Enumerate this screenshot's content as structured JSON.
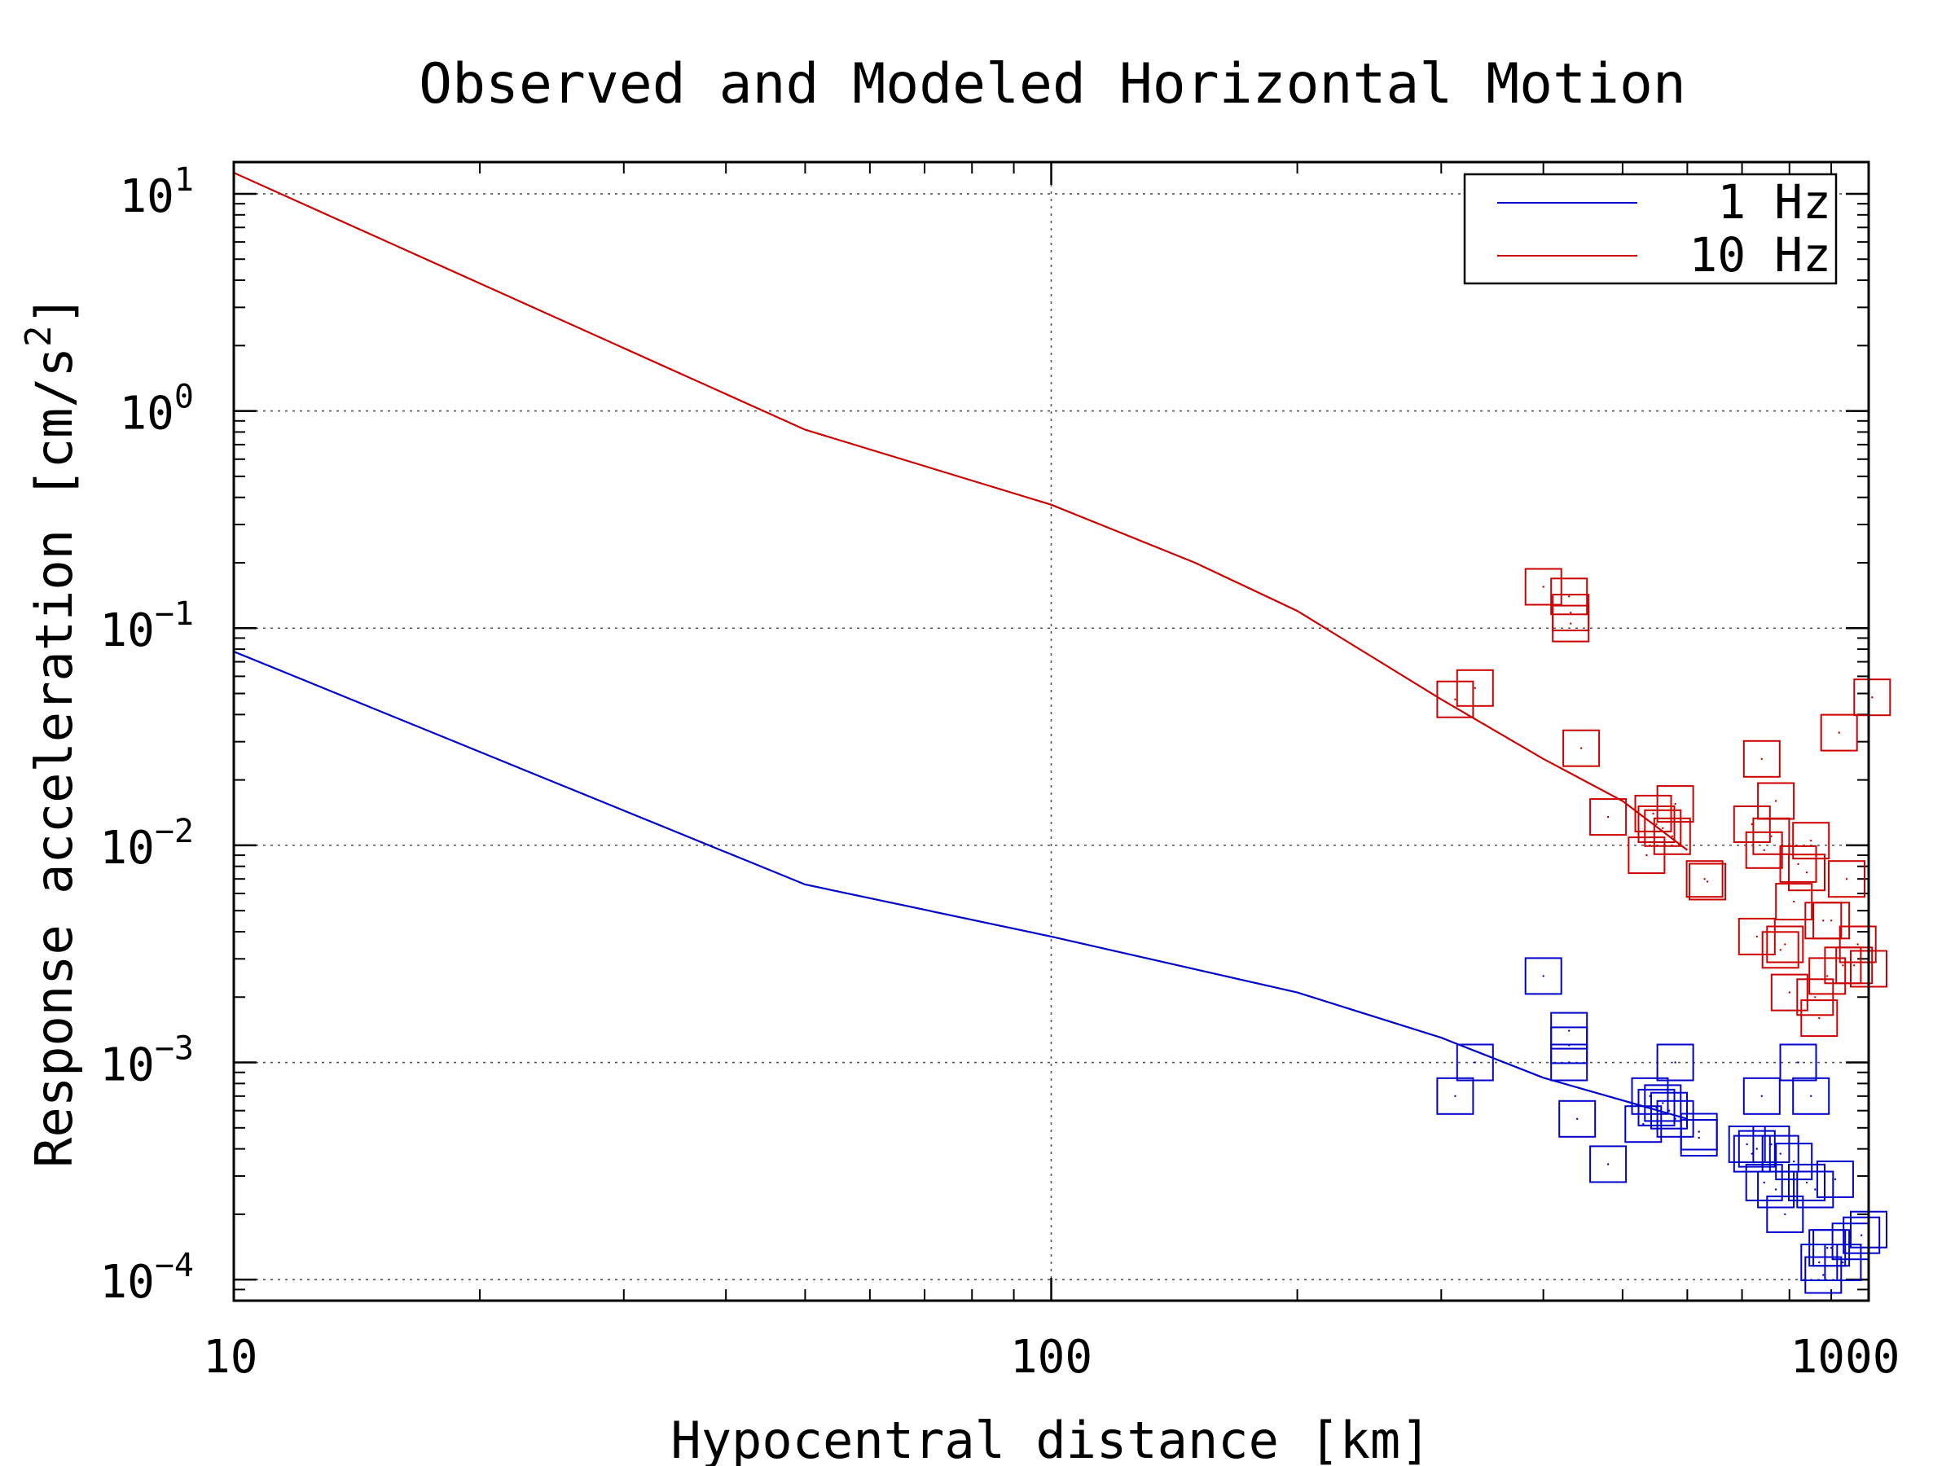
{
  "chart_data": {
    "type": "scatter",
    "title": "Observed and Modeled Horizontal Motion",
    "xlabel": "Hypocentral distance [km]",
    "ylabel_base": "Response acceleration [cm/s",
    "ylabel_exp": "2",
    "ylabel_close": "]",
    "x_scale": "log",
    "y_scale": "log",
    "xlim": [
      10,
      1000
    ],
    "ylim": [
      8e-05,
      14
    ],
    "grid": true,
    "legend_position": "top-right",
    "x_ticks": [
      {
        "value": 10,
        "label": "10"
      },
      {
        "value": 100,
        "label": "100"
      },
      {
        "value": 1000,
        "label": "1000"
      }
    ],
    "y_ticks": [
      {
        "value": 10,
        "base": "10",
        "exp": "1"
      },
      {
        "value": 1,
        "base": "10",
        "exp": "0"
      },
      {
        "value": 0.1,
        "base": "10",
        "exp": "−1"
      },
      {
        "value": 0.01,
        "base": "10",
        "exp": "−2"
      },
      {
        "value": 0.001,
        "base": "10",
        "exp": "−3"
      },
      {
        "value": 0.0001,
        "base": "10",
        "exp": "−4"
      }
    ],
    "series": [
      {
        "name": "1 Hz",
        "color": "#0000cc",
        "model": [
          [
            10,
            0.078
          ],
          [
            50,
            0.0066
          ],
          [
            100,
            0.0038
          ],
          [
            200,
            0.0021
          ],
          [
            300,
            0.0013
          ],
          [
            400,
            0.00085
          ],
          [
            600,
            0.00055
          ]
        ],
        "observed": [
          [
            312,
            0.0007
          ],
          [
            330,
            0.001
          ],
          [
            400,
            0.0025
          ],
          [
            430,
            0.0014
          ],
          [
            430,
            0.0012
          ],
          [
            430,
            0.001
          ],
          [
            440,
            0.00055
          ],
          [
            480,
            0.00034
          ],
          [
            530,
            0.00052
          ],
          [
            540,
            0.0007
          ],
          [
            550,
            0.00062
          ],
          [
            560,
            0.00065
          ],
          [
            570,
            0.0006
          ],
          [
            580,
            0.00055
          ],
          [
            580,
            0.001
          ],
          [
            620,
            0.00048
          ],
          [
            620,
            0.00045
          ],
          [
            710,
            0.00042
          ],
          [
            720,
            0.00038
          ],
          [
            730,
            0.0004
          ],
          [
            740,
            0.0007
          ],
          [
            745,
            0.00028
          ],
          [
            760,
            0.00042
          ],
          [
            770,
            0.00026
          ],
          [
            780,
            0.00038
          ],
          [
            790,
            0.0002
          ],
          [
            810,
            0.00035
          ],
          [
            820,
            0.001
          ],
          [
            840,
            0.00028
          ],
          [
            850,
            0.0007
          ],
          [
            860,
            0.00026
          ],
          [
            870,
            0.00012
          ],
          [
            880,
            0.000105
          ],
          [
            890,
            0.00014
          ],
          [
            900,
            0.00014
          ],
          [
            910,
            0.00029
          ],
          [
            930,
            0.00012
          ],
          [
            950,
            0.00015
          ],
          [
            980,
            0.00016
          ],
          [
            1000,
            0.00017
          ]
        ]
      },
      {
        "name": "10 Hz",
        "color": "#cc0000",
        "model": [
          [
            10,
            12.5
          ],
          [
            50,
            0.82
          ],
          [
            100,
            0.37
          ],
          [
            150,
            0.2
          ],
          [
            200,
            0.12
          ],
          [
            300,
            0.047
          ],
          [
            400,
            0.025
          ],
          [
            500,
            0.016
          ],
          [
            600,
            0.0095
          ]
        ],
        "observed": [
          [
            312,
            0.047
          ],
          [
            330,
            0.053
          ],
          [
            400,
            0.155
          ],
          [
            430,
            0.14
          ],
          [
            432,
            0.118
          ],
          [
            432,
            0.105
          ],
          [
            445,
            0.028
          ],
          [
            480,
            0.0135
          ],
          [
            535,
            0.009
          ],
          [
            545,
            0.014
          ],
          [
            550,
            0.0125
          ],
          [
            560,
            0.012
          ],
          [
            575,
            0.011
          ],
          [
            580,
            0.0155
          ],
          [
            630,
            0.007
          ],
          [
            635,
            0.0068
          ],
          [
            720,
            0.0125
          ],
          [
            730,
            0.0038
          ],
          [
            740,
            0.025
          ],
          [
            745,
            0.0095
          ],
          [
            760,
            0.011
          ],
          [
            770,
            0.016
          ],
          [
            780,
            0.0033
          ],
          [
            790,
            0.0035
          ],
          [
            800,
            0.0021
          ],
          [
            810,
            0.0055
          ],
          [
            820,
            0.0082
          ],
          [
            840,
            0.0075
          ],
          [
            850,
            0.0105
          ],
          [
            860,
            0.002
          ],
          [
            870,
            0.0016
          ],
          [
            880,
            0.0045
          ],
          [
            890,
            0.0025
          ],
          [
            900,
            0.0045
          ],
          [
            920,
            0.033
          ],
          [
            930,
            0.0028
          ],
          [
            940,
            0.007
          ],
          [
            960,
            0.0028
          ],
          [
            970,
            0.0035
          ],
          [
            1000,
            0.0027
          ],
          [
            1010,
            0.048
          ]
        ]
      }
    ]
  }
}
